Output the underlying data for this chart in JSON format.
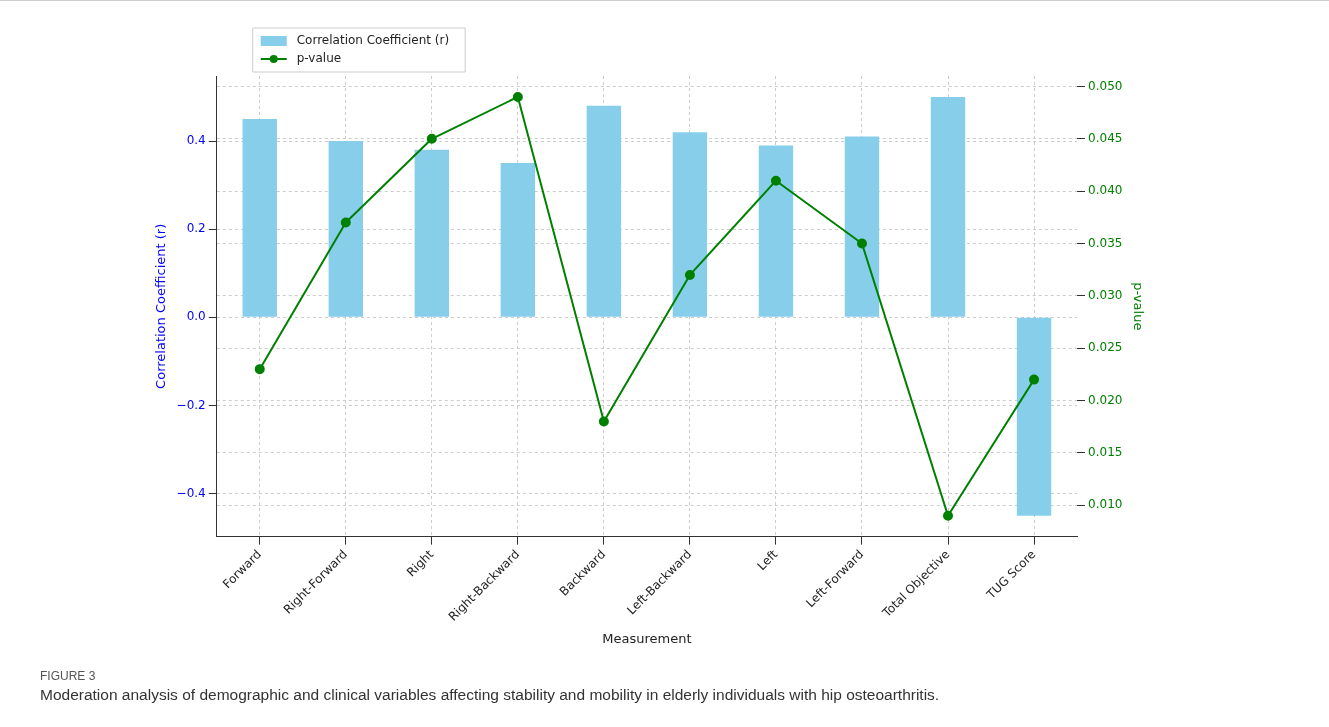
{
  "chart_data": {
    "type": "bar",
    "categories": [
      "Forward",
      "Right-Forward",
      "Right",
      "Right-Backward",
      "Backward",
      "Left-Backward",
      "Left",
      "Left-Forward",
      "Total Objective",
      "TUG Score"
    ],
    "series": [
      {
        "name": "Correlation Coefficient (r)",
        "color": "#87ceeb",
        "values": [
          0.45,
          0.4,
          0.38,
          0.35,
          0.48,
          0.42,
          0.39,
          0.41,
          0.5,
          -0.45
        ]
      },
      {
        "name": "p-value",
        "type": "line",
        "axis": "y2",
        "color": "#008000",
        "values": [
          0.023,
          0.037,
          0.045,
          0.049,
          0.018,
          0.032,
          0.041,
          0.035,
          0.009,
          0.022
        ]
      }
    ],
    "xlabel": "Measurement",
    "ylabel": "Correlation Coefficient (r)",
    "y2label": "p-value",
    "ylim": [
      -0.4975,
      0.5475
    ],
    "yticks": [
      {
        "value": -0.4,
        "label": "−0.4"
      },
      {
        "value": -0.2,
        "label": "−0.2"
      },
      {
        "value": 0,
        "label": "0.0"
      },
      {
        "value": 0.2,
        "label": "0.2"
      },
      {
        "value": 0.4,
        "label": "0.4"
      }
    ],
    "y2lim": [
      0.007,
      0.051
    ],
    "y2ticks": [
      {
        "value": 0.01,
        "label": "0.010"
      },
      {
        "value": 0.015,
        "label": "0.015"
      },
      {
        "value": 0.02,
        "label": "0.020"
      },
      {
        "value": 0.025,
        "label": "0.025"
      },
      {
        "value": 0.03,
        "label": "0.030"
      },
      {
        "value": 0.035,
        "label": "0.035"
      },
      {
        "value": 0.04,
        "label": "0.040"
      },
      {
        "value": 0.045,
        "label": "0.045"
      },
      {
        "value": 0.05,
        "label": "0.050"
      }
    ],
    "grid": true,
    "legend": "top left",
    "marker": "circle",
    "annotations": [
      "FIGURE 3",
      "Moderation analysis of demographic and clinical variables affecting stability and mobility in elderly individuals with hip osteoarthritis."
    ]
  }
}
